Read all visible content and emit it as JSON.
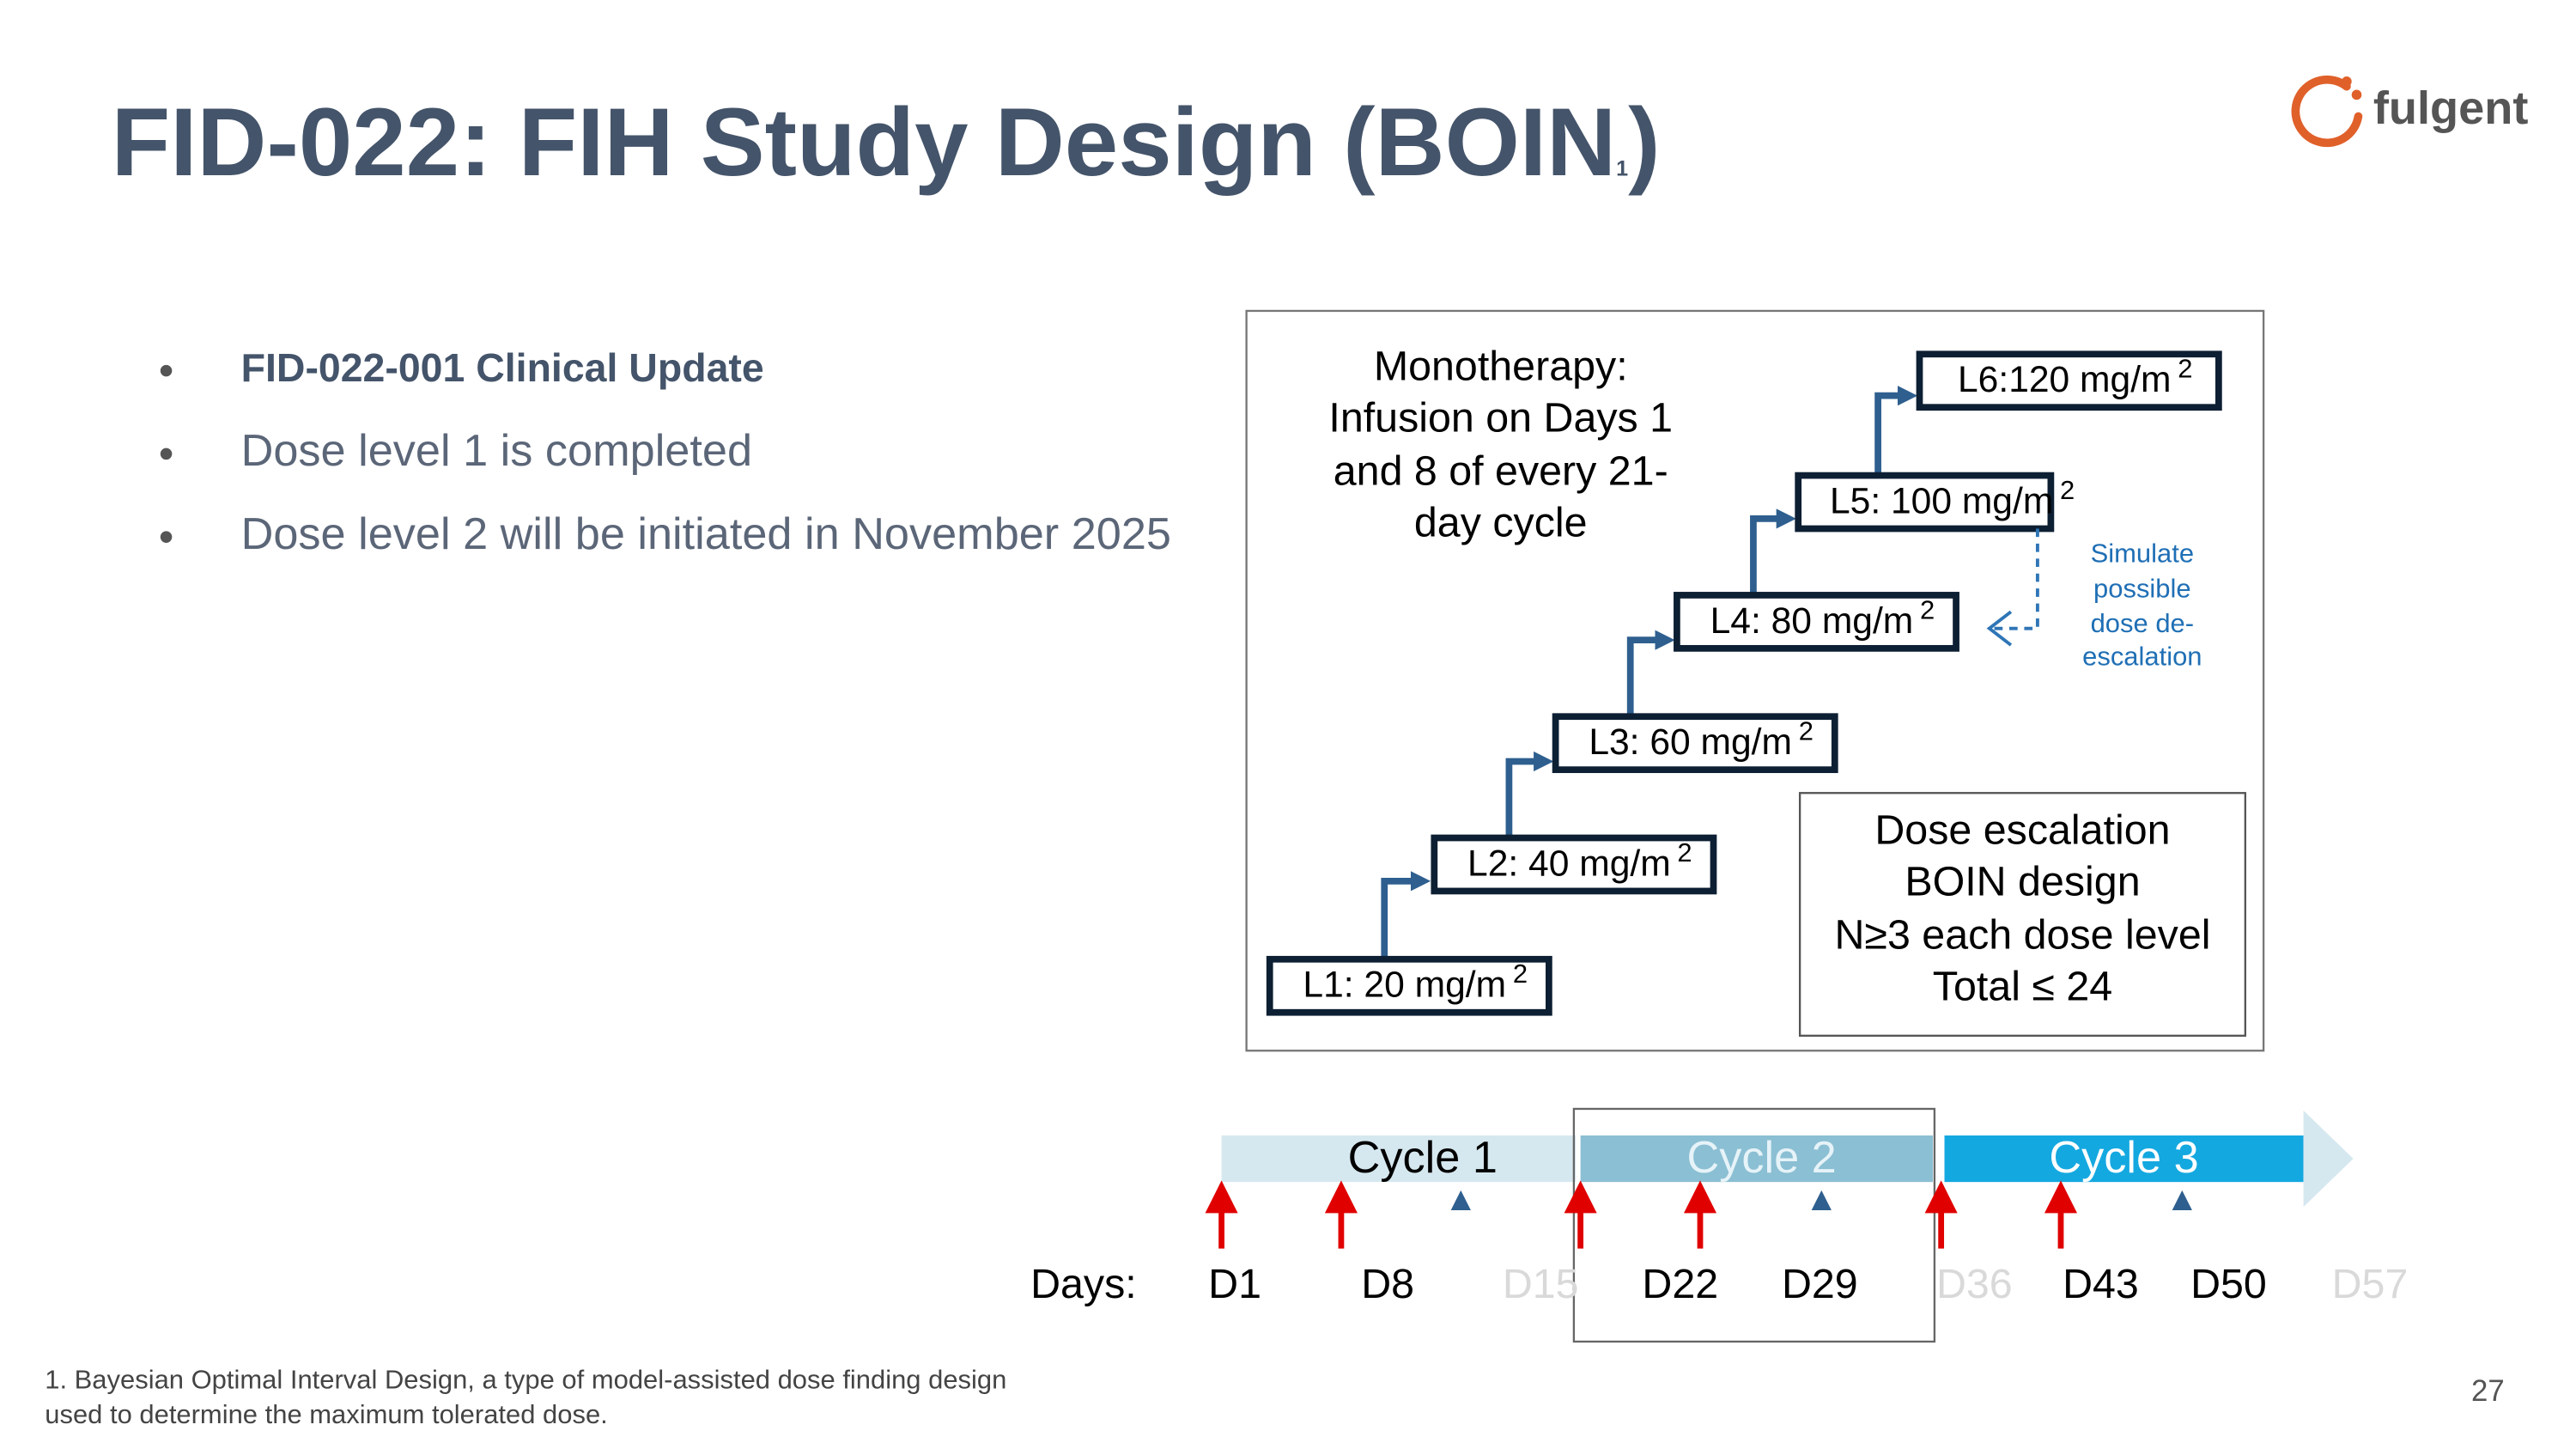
{
  "header": {
    "title_main": "FID-022: FIH Study Design (BOIN",
    "title_note": "1",
    "title_end": ")",
    "logo": "fulgent"
  },
  "bullets": [
    "FID-022-001 Clinical Update",
    "Dose level 1 is completed",
    "Dose level 2 will be initiated in November 2025"
  ],
  "diagram": {
    "monotherapy": [
      "Monotherapy:",
      "Infusion on Days 1",
      "and 8 of every 21-",
      "day cycle"
    ],
    "levels": [
      {
        "label": "L1: 20 mg/m",
        "sup": "2"
      },
      {
        "label": "L2: 40 mg/m",
        "sup": "2"
      },
      {
        "label": "L3: 60 mg/m",
        "sup": "2"
      },
      {
        "label": "L4: 80 mg/m",
        "sup": "2"
      },
      {
        "label": "L5: 100 mg/m",
        "sup": "2"
      },
      {
        "label": "L6:120 mg/m",
        "sup": "2"
      }
    ],
    "deescalation": [
      "Simulate",
      "possible",
      "dose de-",
      "escalation"
    ],
    "escalation": [
      "Dose escalation",
      "BOIN design",
      "N≥3 each dose level",
      "Total ≤ 24"
    ]
  },
  "timeline": {
    "cycles": [
      "Cycle 1",
      "Cycle 2",
      "Cycle 3"
    ],
    "days_label": "Days:",
    "days": [
      {
        "label": "D1",
        "color": "#000000"
      },
      {
        "label": "D8",
        "color": "#000000"
      },
      {
        "label": "D15",
        "color": "#d9d9d9"
      },
      {
        "label": "D22",
        "color": "#000000"
      },
      {
        "label": "D29",
        "color": "#000000"
      },
      {
        "label": "D36",
        "color": "#d9d9d9"
      },
      {
        "label": "D43",
        "color": "#000000"
      },
      {
        "label": "D50",
        "color": "#000000"
      },
      {
        "label": "D57",
        "color": "#d9d9d9"
      }
    ]
  },
  "footer": {
    "footnote": [
      "1. Bayesian Optimal Interval Design, a type of model-assisted dose finding design",
      "used to determine the maximum tolerated dose."
    ],
    "page_number": "27"
  }
}
